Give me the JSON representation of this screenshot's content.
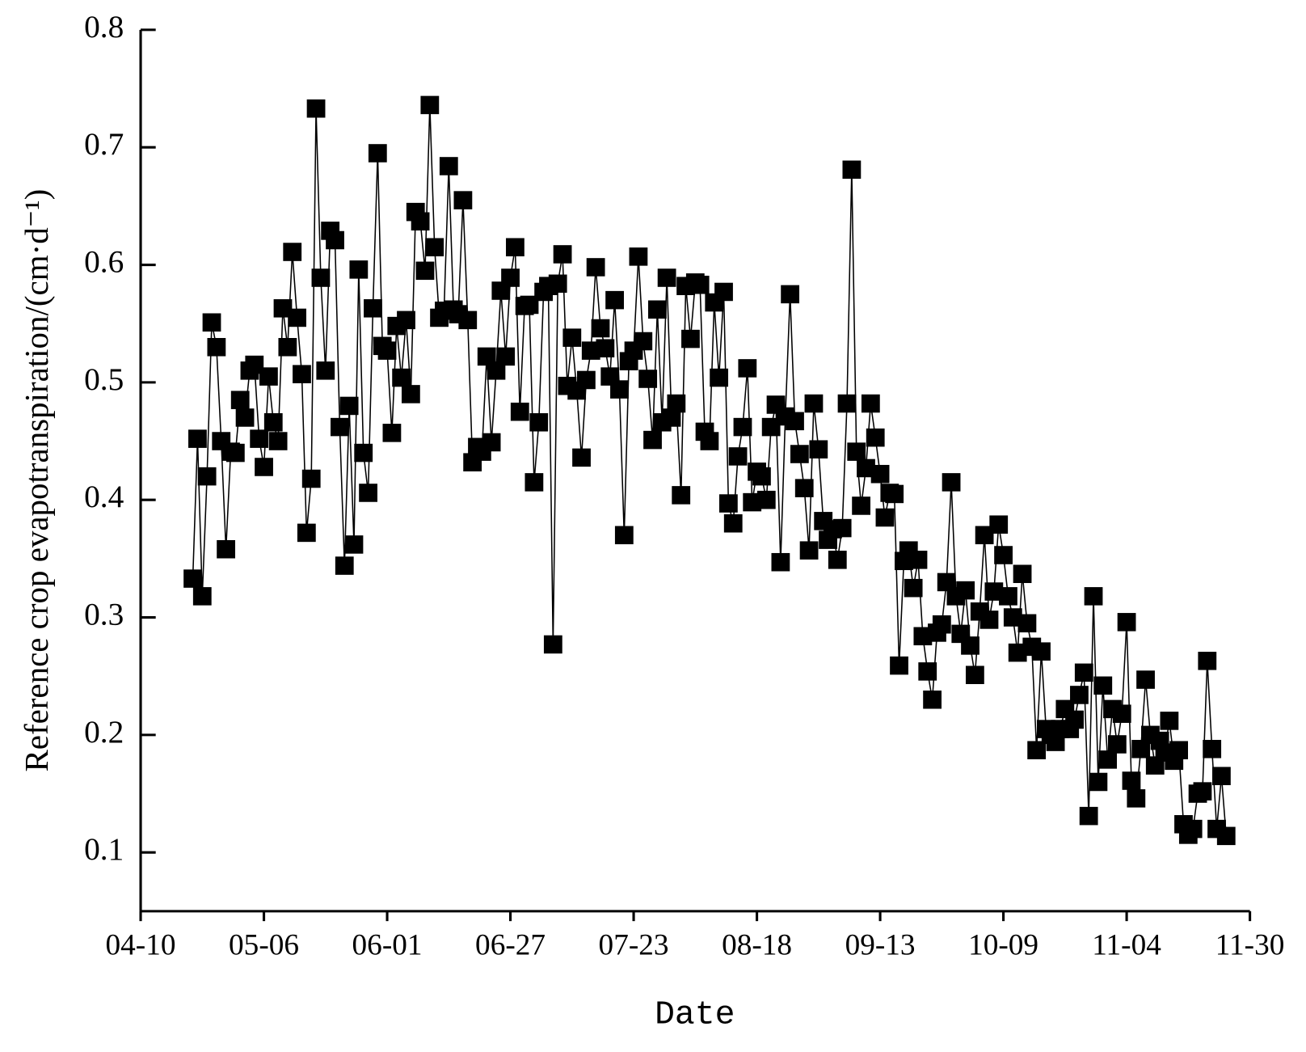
{
  "chart_data": {
    "type": "line",
    "marker": "square",
    "color": "#000000",
    "x_label": "Date",
    "y_label": "Reference crop evapotranspiration/(cm·d⁻¹)",
    "xlim": [
      "04-10",
      "11-30"
    ],
    "xticks": [
      "04-10",
      "05-06",
      "06-01",
      "06-27",
      "07-23",
      "08-18",
      "09-13",
      "10-09",
      "11-04",
      "11-30"
    ],
    "ylim": [
      0.05,
      0.8
    ],
    "yticks": [
      0.1,
      0.2,
      0.3,
      0.4,
      0.5,
      0.6,
      0.7,
      0.8
    ],
    "x": [
      "04-21",
      "04-22",
      "04-23",
      "04-24",
      "04-25",
      "04-26",
      "04-27",
      "04-28",
      "04-29",
      "04-30",
      "05-01",
      "05-02",
      "05-03",
      "05-04",
      "05-05",
      "05-06",
      "05-07",
      "05-08",
      "05-09",
      "05-10",
      "05-11",
      "05-12",
      "05-13",
      "05-14",
      "05-15",
      "05-16",
      "05-17",
      "05-18",
      "05-19",
      "05-20",
      "05-21",
      "05-22",
      "05-23",
      "05-24",
      "05-25",
      "05-26",
      "05-27",
      "05-28",
      "05-29",
      "05-30",
      "05-31",
      "06-01",
      "06-02",
      "06-03",
      "06-04",
      "06-05",
      "06-06",
      "06-07",
      "06-08",
      "06-09",
      "06-10",
      "06-11",
      "06-12",
      "06-13",
      "06-14",
      "06-15",
      "06-16",
      "06-17",
      "06-18",
      "06-19",
      "06-20",
      "06-21",
      "06-22",
      "06-23",
      "06-24",
      "06-25",
      "06-26",
      "06-27",
      "06-28",
      "06-29",
      "06-30",
      "07-01",
      "07-02",
      "07-03",
      "07-04",
      "07-05",
      "07-06",
      "07-07",
      "07-08",
      "07-09",
      "07-10",
      "07-11",
      "07-12",
      "07-13",
      "07-14",
      "07-15",
      "07-16",
      "07-17",
      "07-18",
      "07-19",
      "07-20",
      "07-21",
      "07-22",
      "07-23",
      "07-24",
      "07-25",
      "07-26",
      "07-27",
      "07-28",
      "07-29",
      "07-30",
      "07-31",
      "08-01",
      "08-02",
      "08-03",
      "08-04",
      "08-05",
      "08-06",
      "08-07",
      "08-08",
      "08-09",
      "08-10",
      "08-11",
      "08-12",
      "08-13",
      "08-14",
      "08-15",
      "08-16",
      "08-17",
      "08-18",
      "08-19",
      "08-20",
      "08-21",
      "08-22",
      "08-23",
      "08-24",
      "08-25",
      "08-26",
      "08-27",
      "08-28",
      "08-29",
      "08-30",
      "08-31",
      "09-01",
      "09-02",
      "09-03",
      "09-04",
      "09-05",
      "09-06",
      "09-07",
      "09-08",
      "09-09",
      "09-10",
      "09-11",
      "09-12",
      "09-13",
      "09-14",
      "09-15",
      "09-16",
      "09-17",
      "09-18",
      "09-19",
      "09-20",
      "09-21",
      "09-22",
      "09-23",
      "09-24",
      "09-25",
      "09-26",
      "09-27",
      "09-28",
      "09-29",
      "09-30",
      "10-01",
      "10-02",
      "10-03",
      "10-04",
      "10-05",
      "10-06",
      "10-07",
      "10-08",
      "10-09",
      "10-10",
      "10-11",
      "10-12",
      "10-13",
      "10-14",
      "10-15",
      "10-16",
      "10-17",
      "10-18",
      "10-19",
      "10-20",
      "10-21",
      "10-22",
      "10-23",
      "10-24",
      "10-25",
      "10-26",
      "10-27",
      "10-28",
      "10-29",
      "10-30",
      "10-31",
      "11-01",
      "11-02",
      "11-03",
      "11-04",
      "11-05",
      "11-06",
      "11-07",
      "11-08",
      "11-09",
      "11-10",
      "11-11",
      "11-12",
      "11-13",
      "11-14",
      "11-15",
      "11-16",
      "11-17",
      "11-18",
      "11-19",
      "11-20",
      "11-21",
      "11-22",
      "11-23",
      "11-24",
      "11-25"
    ],
    "values": [
      0.333,
      0.452,
      0.318,
      0.42,
      0.551,
      0.53,
      0.45,
      0.358,
      0.441,
      0.44,
      0.485,
      0.47,
      0.51,
      0.515,
      0.452,
      0.428,
      0.505,
      0.466,
      0.45,
      0.563,
      0.53,
      0.611,
      0.555,
      0.507,
      0.372,
      0.418,
      0.733,
      0.589,
      0.51,
      0.629,
      0.621,
      0.462,
      0.344,
      0.48,
      0.362,
      0.596,
      0.44,
      0.406,
      0.563,
      0.695,
      0.531,
      0.527,
      0.457,
      0.548,
      0.504,
      0.553,
      0.49,
      0.645,
      0.637,
      0.595,
      0.736,
      0.615,
      0.555,
      0.561,
      0.684,
      0.562,
      0.558,
      0.655,
      0.553,
      0.432,
      0.445,
      0.441,
      0.522,
      0.449,
      0.51,
      0.578,
      0.522,
      0.589,
      0.615,
      0.475,
      0.565,
      0.566,
      0.415,
      0.466,
      0.577,
      0.582,
      0.277,
      0.584,
      0.609,
      0.497,
      0.538,
      0.493,
      0.436,
      0.502,
      0.527,
      0.598,
      0.546,
      0.529,
      0.505,
      0.57,
      0.494,
      0.37,
      0.518,
      0.527,
      0.607,
      0.535,
      0.503,
      0.451,
      0.562,
      0.466,
      0.589,
      0.47,
      0.482,
      0.404,
      0.582,
      0.537,
      0.585,
      0.583,
      0.458,
      0.45,
      0.568,
      0.504,
      0.577,
      0.397,
      0.38,
      0.437,
      0.462,
      0.512,
      0.398,
      0.424,
      0.42,
      0.4,
      0.462,
      0.481,
      0.347,
      0.471,
      0.575,
      0.467,
      0.439,
      0.41,
      0.357,
      0.482,
      0.443,
      0.382,
      0.366,
      0.375,
      0.349,
      0.376,
      0.482,
      0.681,
      0.441,
      0.395,
      0.427,
      0.482,
      0.453,
      0.422,
      0.385,
      0.406,
      0.405,
      0.259,
      0.348,
      0.357,
      0.325,
      0.349,
      0.284,
      0.254,
      0.23,
      0.287,
      0.294,
      0.33,
      0.415,
      0.318,
      0.286,
      0.323,
      0.276,
      0.251,
      0.305,
      0.37,
      0.298,
      0.322,
      0.379,
      0.353,
      0.318,
      0.3,
      0.27,
      0.337,
      0.295,
      0.275,
      0.187,
      0.271,
      0.205,
      0.2,
      0.194,
      0.205,
      0.222,
      0.205,
      0.213,
      0.234,
      0.253,
      0.131,
      0.318,
      0.16,
      0.242,
      0.179,
      0.222,
      0.192,
      0.218,
      0.296,
      0.161,
      0.146,
      0.188,
      0.247,
      0.2,
      0.174,
      0.195,
      0.185,
      0.212,
      0.178,
      0.187,
      0.124,
      0.115,
      0.12,
      0.15,
      0.152,
      0.263,
      0.188,
      0.12,
      0.165,
      0.114
    ]
  }
}
